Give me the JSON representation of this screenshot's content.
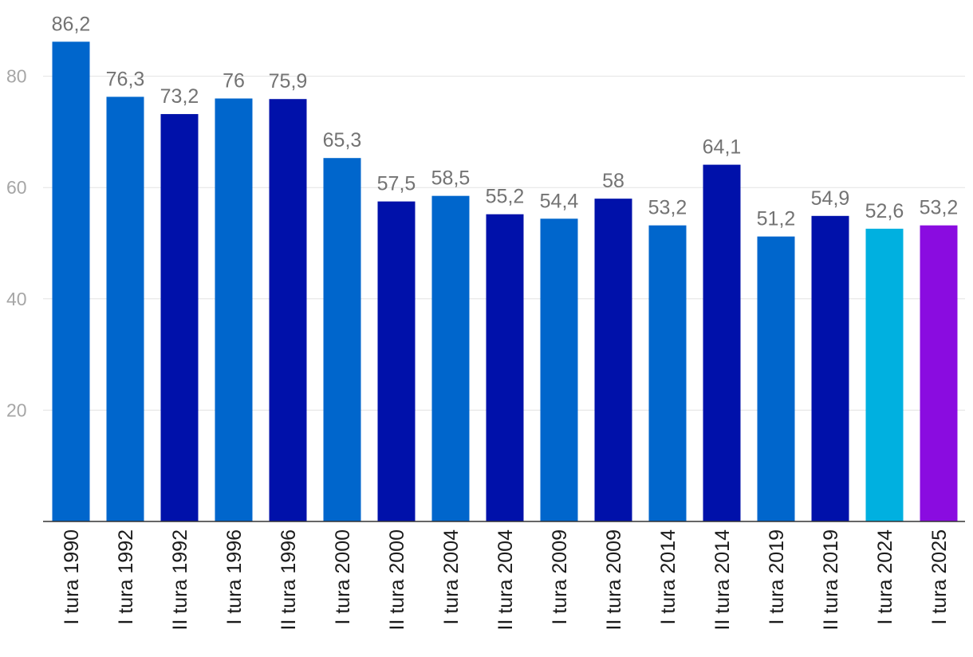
{
  "chart_data": {
    "type": "bar",
    "title": "",
    "xlabel": "",
    "ylabel": "",
    "ylim": [
      0,
      90
    ],
    "yticks": [
      20,
      40,
      60,
      80
    ],
    "grid": true,
    "categories": [
      "I tura 1990",
      "I tura 1992",
      "II tura 1992",
      "I tura 1996",
      "II tura 1996",
      "I tura 2000",
      "II tura 2000",
      "I tura 2004",
      "II tura 2004",
      "I tura 2009",
      "II tura 2009",
      "I tura 2014",
      "II tura 2014",
      "I tura 2019",
      "II tura 2019",
      "I tura 2024",
      "I tura 2025"
    ],
    "values": [
      86.2,
      76.3,
      73.2,
      76,
      75.9,
      65.3,
      57.5,
      58.5,
      55.2,
      54.4,
      58,
      53.2,
      64.1,
      51.2,
      54.9,
      52.6,
      53.2
    ],
    "value_labels": [
      "86,2",
      "76,3",
      "73,2",
      "76",
      "75,9",
      "65,3",
      "57,5",
      "58,5",
      "55,2",
      "54,4",
      "58",
      "53,2",
      "64,1",
      "51,2",
      "54,9",
      "52,6",
      "53,2"
    ],
    "bar_colors": [
      "#0066cc",
      "#0066cc",
      "#0011aa",
      "#0066cc",
      "#0011aa",
      "#0066cc",
      "#0011aa",
      "#0066cc",
      "#0011aa",
      "#0066cc",
      "#0011aa",
      "#0066cc",
      "#0011aa",
      "#0066cc",
      "#0011aa",
      "#00b0e0",
      "#8a0ce0"
    ]
  }
}
